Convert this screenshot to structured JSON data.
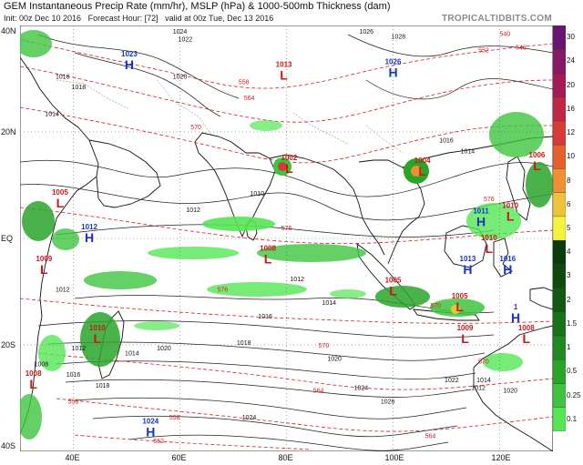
{
  "header": {
    "title": "GEM Instantaneous Precip Rate (mm/hr), MSLP (hPa) & 1000-500mb Thickness (dam)",
    "init": "Init: 00z Dec 10 2016",
    "forecast_hour": "Forecast Hour: [72]",
    "valid": "valid at 00z Tue, Dec 13 2016",
    "brand": "TROPICALTIDBITS.COM"
  },
  "axes": {
    "lat_labels": [
      "40N",
      "20N",
      "EQ",
      "20S",
      "40S"
    ],
    "lon_labels": [
      "40E",
      "60E",
      "80E",
      "100E",
      "120E"
    ]
  },
  "legend": {
    "labels": [
      "0.1",
      "0.25",
      "0.5",
      "1",
      "1.5",
      "2",
      "3",
      "4",
      "5",
      "6",
      "8",
      "10",
      "12",
      "16",
      "20",
      "24",
      "30"
    ],
    "colors": [
      "#55e655",
      "#3ec43e",
      "#2aa52a",
      "#1f8a1f",
      "#187218",
      "#125a12",
      "#0e4a0e",
      "#0b3a0b",
      "#f3f33c",
      "#f0c23a",
      "#ee9033",
      "#e6602e",
      "#d83a35",
      "#c22645",
      "#a41a55",
      "#861866",
      "#6a1373"
    ]
  },
  "pressure_centers": [
    {
      "type": "H",
      "value": "1023",
      "lat": 33.0,
      "lon": 50.5
    },
    {
      "type": "H",
      "value": "1026",
      "lat": 31.5,
      "lon": 100.0
    },
    {
      "type": "L",
      "value": "1013",
      "lat": 31.0,
      "lon": 79.5
    },
    {
      "type": "L",
      "value": "1002",
      "lat": 13.5,
      "lon": 80.5
    },
    {
      "type": "L",
      "value": "1004",
      "lat": 13.0,
      "lon": 105.5
    },
    {
      "type": "L",
      "value": "1006",
      "lat": 14.0,
      "lon": 127.0
    },
    {
      "type": "L",
      "value": "1005",
      "lat": 7.0,
      "lon": 37.5
    },
    {
      "type": "H",
      "value": "1012",
      "lat": 0.5,
      "lon": 43.0
    },
    {
      "type": "L",
      "value": "1009",
      "lat": -5.5,
      "lon": 34.5
    },
    {
      "type": "L",
      "value": "1008",
      "lat": -3.5,
      "lon": 76.5
    },
    {
      "type": "H",
      "value": "1011",
      "lat": 3.5,
      "lon": 116.5
    },
    {
      "type": "L",
      "value": "1010",
      "lat": 4.5,
      "lon": 122.0
    },
    {
      "type": "L",
      "value": "1010",
      "lat": -1.5,
      "lon": 118.0
    },
    {
      "type": "H",
      "value": "1013",
      "lat": -5.5,
      "lon": 114.0
    },
    {
      "type": "H",
      "value": "1016",
      "lat": -5.5,
      "lon": 121.5
    },
    {
      "type": "L",
      "value": "1005",
      "lat": -9.5,
      "lon": 100.0
    },
    {
      "type": "L",
      "value": "1005",
      "lat": -12.5,
      "lon": 112.5
    },
    {
      "type": "H",
      "value": "1",
      "lat": -14.5,
      "lon": 123.0
    },
    {
      "type": "L",
      "value": "1010",
      "lat": -18.5,
      "lon": 44.5
    },
    {
      "type": "L",
      "value": "1009",
      "lat": -18.5,
      "lon": 113.5
    },
    {
      "type": "L",
      "value": "1008",
      "lat": -18.5,
      "lon": 125.0
    },
    {
      "type": "L",
      "value": "1008",
      "lat": -27.0,
      "lon": 32.5
    },
    {
      "type": "H",
      "value": "1024",
      "lat": -36.0,
      "lon": 54.5
    }
  ],
  "isobar_labels": [
    {
      "value": "1024",
      "lat": 38.5,
      "lon": 60.0
    },
    {
      "value": "1022",
      "lat": 37.0,
      "lon": 61.0
    },
    {
      "value": "1026",
      "lat": 38.5,
      "lon": 95.0
    },
    {
      "value": "1028",
      "lat": 37.5,
      "lon": 101.0
    },
    {
      "value": "1020",
      "lat": 30.0,
      "lon": 60.0
    },
    {
      "value": "1016",
      "lat": 30.0,
      "lon": 38.0
    },
    {
      "value": "1018",
      "lat": 28.0,
      "lon": 41.0
    },
    {
      "value": "1014",
      "lat": 23.0,
      "lon": 36.0
    },
    {
      "value": "1016",
      "lat": 18.0,
      "lon": 110.0
    },
    {
      "value": "1014",
      "lat": 16.0,
      "lon": 114.0
    },
    {
      "value": "1012",
      "lat": 5.0,
      "lon": 62.5
    },
    {
      "value": "1010",
      "lat": 8.0,
      "lon": 74.5
    },
    {
      "value": "1012",
      "lat": -8.0,
      "lon": 82.0
    },
    {
      "value": "1014",
      "lat": -12.5,
      "lon": 88.0
    },
    {
      "value": "1016",
      "lat": -15.0,
      "lon": 76.0
    },
    {
      "value": "1018",
      "lat": -20.0,
      "lon": 72.0
    },
    {
      "value": "1020",
      "lat": -23.0,
      "lon": 89.0
    },
    {
      "value": "1022",
      "lat": -27.0,
      "lon": 111.0
    },
    {
      "value": "1024",
      "lat": -28.5,
      "lon": 94.0
    },
    {
      "value": "1026",
      "lat": -31.0,
      "lon": 99.0
    },
    {
      "value": "1020",
      "lat": -21.0,
      "lon": 57.0
    },
    {
      "value": "1018",
      "lat": -28.0,
      "lon": 45.5
    },
    {
      "value": "1016",
      "lat": -26.0,
      "lon": 40.0
    },
    {
      "value": "1014",
      "lat": -22.0,
      "lon": 51.0
    },
    {
      "value": "1012",
      "lat": -21.0,
      "lon": 41.0
    },
    {
      "value": "1008",
      "lat": -24.0,
      "lon": 34.0
    },
    {
      "value": "1012",
      "lat": -10.0,
      "lon": 38.0
    },
    {
      "value": "1014",
      "lat": -27.0,
      "lon": 117.0
    },
    {
      "value": "1020",
      "lat": -29.0,
      "lon": 122.0
    },
    {
      "value": "1024",
      "lat": -34.0,
      "lon": 73.0
    },
    {
      "value": "1012",
      "lat": -28.5,
      "lon": 116.0
    }
  ],
  "thickness_labels": [
    {
      "value": "540",
      "lat": 38.0,
      "lon": 121.0
    },
    {
      "value": "546",
      "lat": 35.5,
      "lon": 124.0
    },
    {
      "value": "552",
      "lat": 35.0,
      "lon": 117.0
    },
    {
      "value": "558",
      "lat": 29.0,
      "lon": 72.0
    },
    {
      "value": "564",
      "lat": 26.0,
      "lon": 73.0
    },
    {
      "value": "570",
      "lat": 20.5,
      "lon": 63.0
    },
    {
      "value": "576",
      "lat": 1.5,
      "lon": 80.0
    },
    {
      "value": "576",
      "lat": -10.0,
      "lon": 68.0
    },
    {
      "value": "570",
      "lat": -13.0,
      "lon": 108.0
    },
    {
      "value": "570",
      "lat": -20.5,
      "lon": 87.0
    },
    {
      "value": "564",
      "lat": -29.0,
      "lon": 86.0
    },
    {
      "value": "558",
      "lat": -34.0,
      "lon": 59.0
    },
    {
      "value": "552",
      "lat": -38.5,
      "lon": 56.0
    },
    {
      "value": "564",
      "lat": -37.5,
      "lon": 107.0
    },
    {
      "value": "576",
      "lat": 7.0,
      "lon": 118.0
    },
    {
      "value": "552",
      "lat": 40.0,
      "lon": 32.5
    },
    {
      "value": "546",
      "lat": 40.0,
      "lon": 35.0
    },
    {
      "value": "558",
      "lat": -31.0,
      "lon": 40.0
    },
    {
      "value": "570",
      "lat": -23.5,
      "lon": 117.0
    }
  ]
}
